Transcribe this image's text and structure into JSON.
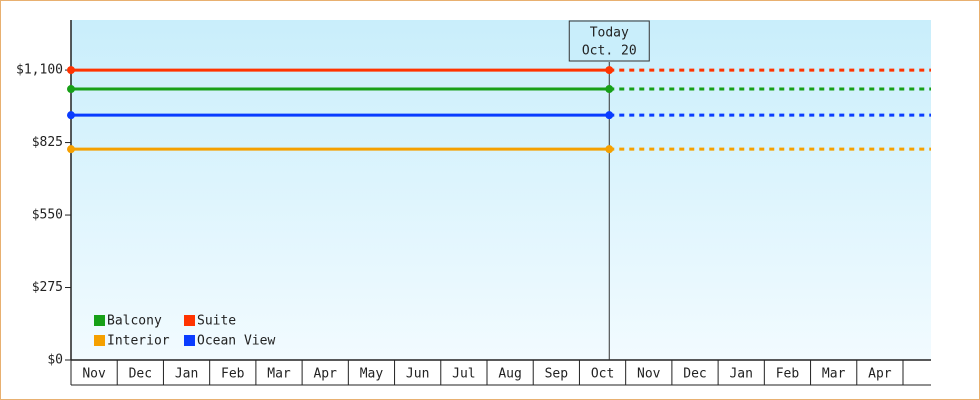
{
  "chart_data": {
    "type": "line",
    "categories": [
      "Nov",
      "Dec",
      "Jan",
      "Feb",
      "Mar",
      "Apr",
      "May",
      "Jun",
      "Jul",
      "Aug",
      "Sep",
      "Oct",
      "Nov",
      "Dec",
      "Jan",
      "Feb",
      "Mar",
      "Apr"
    ],
    "series": [
      {
        "name": "Balcony",
        "color": "#17a017",
        "value": 1028
      },
      {
        "name": "Suite",
        "color": "#ff3300",
        "value": 1100
      },
      {
        "name": "Interior",
        "color": "#f5a000",
        "value": 800
      },
      {
        "name": "Ocean View",
        "color": "#0a3cff",
        "value": 929
      }
    ],
    "today": {
      "label": "Today",
      "date": "Oct. 20",
      "category_index": 11
    },
    "ylim": [
      0,
      1290
    ],
    "yticks": [
      {
        "value": 0,
        "label": "$0"
      },
      {
        "value": 275,
        "label": "$275"
      },
      {
        "value": 550,
        "label": "$550"
      },
      {
        "value": 825,
        "label": "$825"
      },
      {
        "value": 1100,
        "label": "$1,100"
      }
    ]
  }
}
